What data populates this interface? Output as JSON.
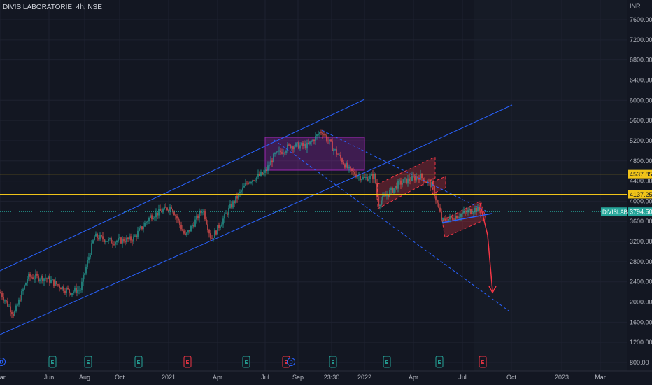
{
  "chart_data": {
    "type": "candlestick",
    "title": "DIVIS LABORATORIE, 4h, NSE",
    "ylabel": "INR",
    "ylim": [
      600,
      7900
    ],
    "y_ticks": [
      7600,
      7200,
      6800,
      6400,
      6000,
      5600,
      5200,
      4800,
      4400,
      4000,
      3600,
      3200,
      2800,
      2400,
      2000,
      1600,
      1200,
      800
    ],
    "x_ticks": [
      "Mar",
      "Jun",
      "Aug",
      "Oct",
      "2021",
      "Apr",
      "Jul",
      "Sep",
      "23:30",
      "2022",
      "Apr",
      "Jul",
      "Oct",
      "2023",
      "Mar"
    ],
    "horizontal_levels": [
      {
        "value": 4537.85,
        "label": "4537.85",
        "color": "#f0c419"
      },
      {
        "value": 4137.25,
        "label": "4137.25",
        "color": "#f0c419"
      }
    ],
    "last_price": {
      "symbol": "DIVISLAB",
      "value": 3794.5,
      "label": "3794.50",
      "color": "#26a69a"
    },
    "events": [
      {
        "date": "Mar",
        "kind": "D"
      },
      {
        "date": "Jun",
        "kind": "E"
      },
      {
        "date": "Aug",
        "kind": "E"
      },
      {
        "date": "Nov",
        "kind": "E"
      },
      {
        "date": "Feb",
        "kind": "E"
      },
      {
        "date": "Jun",
        "kind": "E"
      },
      {
        "date": "Aug",
        "kind": "E"
      },
      {
        "date": "Aug",
        "kind": "D"
      },
      {
        "date": "Nov",
        "kind": "E"
      },
      {
        "date": "Feb",
        "kind": "E"
      },
      {
        "date": "May",
        "kind": "E"
      },
      {
        "date": "Aug",
        "kind": "E"
      }
    ],
    "colors": {
      "up": "#26a69a",
      "down": "#ef5350",
      "trendline": "#2962ff",
      "projection": "#f23645",
      "level": "#f0c419"
    },
    "grid": true
  }
}
